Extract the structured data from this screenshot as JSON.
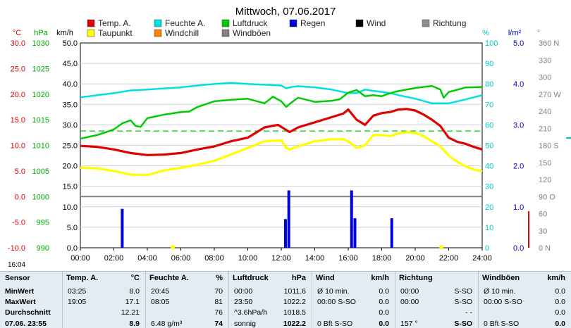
{
  "chart_data": {
    "type": "line",
    "title": "Mittwoch, 07.06.2017",
    "x_ticks": [
      "00:00",
      "02:00",
      "04:00",
      "06:00",
      "08:00",
      "10:00",
      "12:00",
      "14:00",
      "16:00",
      "18:00",
      "20:00",
      "22:00",
      "24:00"
    ],
    "axes": {
      "temp_c": {
        "unit": "°C",
        "range": [
          -10,
          30
        ],
        "ticks": [
          "30.0",
          "25.0",
          "20.0",
          "15.0",
          "10.0",
          "5.0",
          "0.0",
          "-5.0",
          "-10.0"
        ],
        "color": "#e00000"
      },
      "pressure_hpa": {
        "unit": "hPa",
        "range": [
          990,
          1030
        ],
        "ticks": [
          "1030",
          "1025",
          "1020",
          "1015",
          "1010",
          "1005",
          "1000",
          "995",
          "990"
        ],
        "color": "#00aa00"
      },
      "wind_kmh": {
        "unit": "km/h",
        "range": [
          0,
          50
        ],
        "ticks": [
          "50.0",
          "45.0",
          "40.0",
          "35.0",
          "30.0",
          "25.0",
          "20.0",
          "15.0",
          "10.0",
          "5.0",
          "0.0"
        ],
        "color": "#000000"
      },
      "humidity_pct": {
        "unit": "%",
        "range": [
          0,
          100
        ],
        "ticks": [
          "100",
          "90",
          "80",
          "70",
          "60",
          "50",
          "40",
          "30",
          "20",
          "10",
          "0"
        ],
        "color": "#00c8c8"
      },
      "rain_lm2": {
        "unit": "l/m²",
        "range": [
          0,
          5
        ],
        "ticks": [
          "5.0",
          "4.0",
          "3.0",
          "2.0",
          "1.0",
          "0.0"
        ],
        "color": "#0000cc"
      },
      "direction_deg": {
        "unit": "°",
        "ticks": [
          "360 N",
          "330",
          "300",
          "270 W",
          "240",
          "210",
          "180 S",
          "150",
          "120",
          "90 O",
          "60",
          "30",
          "0 N"
        ],
        "color": "#808080"
      }
    },
    "legend": [
      {
        "name": "Temp. A.",
        "color": "#e00000"
      },
      {
        "name": "Feuchte A.",
        "color": "#00e0e0"
      },
      {
        "name": "Luftdruck",
        "color": "#00cc00"
      },
      {
        "name": "Regen",
        "color": "#0000dd"
      },
      {
        "name": "Wind",
        "color": "#000000"
      },
      {
        "name": "Richtung",
        "color": "#8c8c8c"
      },
      {
        "name": "Taupunkt",
        "color": "#ffff00"
      },
      {
        "name": "Windchill",
        "color": "#ff8000"
      },
      {
        "name": "Windböen",
        "color": "#808080"
      }
    ],
    "series": [
      {
        "name": "Temp. A.",
        "axis": "temp_c",
        "color": "#e00000",
        "points": [
          [
            0,
            9.9
          ],
          [
            1,
            9.7
          ],
          [
            2,
            9.2
          ],
          [
            3,
            8.5
          ],
          [
            4,
            8.1
          ],
          [
            5,
            8.2
          ],
          [
            6,
            8.5
          ],
          [
            7,
            9.2
          ],
          [
            8,
            9.8
          ],
          [
            9,
            10.8
          ],
          [
            10,
            11.5
          ],
          [
            11,
            13.5
          ],
          [
            11.8,
            14.0
          ],
          [
            12.3,
            13.0
          ],
          [
            12.5,
            12.6
          ],
          [
            13,
            13.5
          ],
          [
            14,
            14.5
          ],
          [
            15,
            15.5
          ],
          [
            15.7,
            16.2
          ],
          [
            16,
            17.0
          ],
          [
            16.5,
            15.0
          ],
          [
            17,
            14.0
          ],
          [
            17.5,
            15.8
          ],
          [
            18,
            16.3
          ],
          [
            18.5,
            16.5
          ],
          [
            19,
            17.0
          ],
          [
            19.5,
            17.1
          ],
          [
            20,
            16.8
          ],
          [
            20.5,
            16.0
          ],
          [
            21,
            15.0
          ],
          [
            21.5,
            13.8
          ],
          [
            22,
            11.5
          ],
          [
            22.5,
            10.7
          ],
          [
            23,
            10.3
          ],
          [
            23.5,
            9.7
          ],
          [
            24,
            9.2
          ]
        ]
      },
      {
        "name": "Taupunkt",
        "axis": "temp_c",
        "color": "#ffff00",
        "points": [
          [
            0,
            5.6
          ],
          [
            1,
            5.5
          ],
          [
            2,
            5.0
          ],
          [
            3,
            4.3
          ],
          [
            4,
            4.2
          ],
          [
            5,
            5.1
          ],
          [
            6,
            5.6
          ],
          [
            7,
            6.2
          ],
          [
            8,
            7.0
          ],
          [
            9,
            8.2
          ],
          [
            10,
            9.5
          ],
          [
            11,
            10.8
          ],
          [
            12,
            11.0
          ],
          [
            12.3,
            9.5
          ],
          [
            12.5,
            9.2
          ],
          [
            13,
            9.8
          ],
          [
            14,
            10.8
          ],
          [
            15,
            11.2
          ],
          [
            15.7,
            11.2
          ],
          [
            16,
            10.8
          ],
          [
            16.5,
            9.5
          ],
          [
            17,
            10.0
          ],
          [
            17.5,
            12.0
          ],
          [
            18,
            12.0
          ],
          [
            18.5,
            11.8
          ],
          [
            19,
            12.3
          ],
          [
            19.5,
            12.6
          ],
          [
            20,
            12.4
          ],
          [
            20.5,
            11.8
          ],
          [
            21,
            10.8
          ],
          [
            21.5,
            9.8
          ],
          [
            22,
            8.0
          ],
          [
            22.5,
            6.8
          ],
          [
            23,
            5.9
          ],
          [
            23.5,
            5.3
          ],
          [
            24,
            4.9
          ]
        ]
      },
      {
        "name": "Feuchte A.",
        "axis": "humidity_pct",
        "color": "#00e0e0",
        "points": [
          [
            0,
            73.4
          ],
          [
            1,
            74.5
          ],
          [
            2,
            75.5
          ],
          [
            3,
            76.8
          ],
          [
            4,
            77.2
          ],
          [
            5,
            77.8
          ],
          [
            6,
            78.3
          ],
          [
            7,
            79.2
          ],
          [
            8,
            80.0
          ],
          [
            9,
            80.5
          ],
          [
            10,
            80.0
          ],
          [
            11,
            79.6
          ],
          [
            12,
            79.2
          ],
          [
            12.3,
            77.8
          ],
          [
            12.5,
            78.3
          ],
          [
            13,
            78.9
          ],
          [
            14,
            78.3
          ],
          [
            15,
            77.2
          ],
          [
            16,
            75.5
          ],
          [
            16.5,
            75.5
          ],
          [
            17,
            77.2
          ],
          [
            17.5,
            76.6
          ],
          [
            18,
            76.1
          ],
          [
            18.5,
            75.5
          ],
          [
            19,
            74.5
          ],
          [
            20,
            72.8
          ],
          [
            21,
            70.5
          ],
          [
            22,
            70.5
          ],
          [
            23,
            72.4
          ],
          [
            24,
            74.5
          ]
        ]
      },
      {
        "name": "Luftdruck",
        "axis": "pressure_hpa",
        "color": "#00cc00",
        "points": [
          [
            0,
            1011.3
          ],
          [
            1,
            1012.0
          ],
          [
            2,
            1013.1
          ],
          [
            2.5,
            1014.3
          ],
          [
            3,
            1014.9
          ],
          [
            3.3,
            1013.8
          ],
          [
            3.6,
            1013.6
          ],
          [
            4,
            1015.3
          ],
          [
            5,
            1016.0
          ],
          [
            6,
            1016.5
          ],
          [
            6.5,
            1016.6
          ],
          [
            7,
            1017.5
          ],
          [
            8,
            1018.6
          ],
          [
            9,
            1018.9
          ],
          [
            10,
            1019.1
          ],
          [
            11,
            1018.2
          ],
          [
            11.5,
            1019.5
          ],
          [
            12,
            1018.6
          ],
          [
            12.3,
            1017.5
          ],
          [
            12.5,
            1018.1
          ],
          [
            13,
            1019.3
          ],
          [
            14,
            1018.5
          ],
          [
            15,
            1018.7
          ],
          [
            15.5,
            1019.0
          ],
          [
            16,
            1020.3
          ],
          [
            16.5,
            1020.8
          ],
          [
            17,
            1019.6
          ],
          [
            17.5,
            1019.8
          ],
          [
            18,
            1019.6
          ],
          [
            18.5,
            1020.2
          ],
          [
            19,
            1020.6
          ],
          [
            20,
            1021.2
          ],
          [
            21,
            1021.6
          ],
          [
            21.5,
            1020.9
          ],
          [
            21.7,
            1019.3
          ],
          [
            22,
            1020.4
          ],
          [
            23,
            1021.3
          ],
          [
            24,
            1021.4
          ]
        ]
      }
    ],
    "rain_bars": [
      {
        "x": 2.5,
        "v": 0.95
      },
      {
        "x": 12.25,
        "v": 0.7
      },
      {
        "x": 12.45,
        "v": 1.4
      },
      {
        "x": 16.2,
        "v": 1.4
      },
      {
        "x": 16.4,
        "v": 0.72
      },
      {
        "x": 18.6,
        "v": 0.72
      }
    ],
    "reference_lines": [
      {
        "axis": "temp_c",
        "value": 12.8,
        "color": "#00cc00",
        "style": "dashed"
      },
      {
        "axis": "temp_c",
        "value": 0.0,
        "color": "#808080",
        "style": "solid"
      }
    ],
    "annotations": [
      "16:04"
    ]
  },
  "stats": {
    "row_labels": [
      "Sensor",
      "MinWert",
      "MaxWert",
      "Durchschnitt",
      "07.06. 23:55"
    ],
    "columns": [
      {
        "title": "Temp. A.",
        "unit": "°C",
        "rows": [
          [
            "03:25",
            "8.0"
          ],
          [
            "19:05",
            "17.1"
          ],
          [
            "",
            "12.21"
          ],
          [
            "",
            "8.9"
          ]
        ]
      },
      {
        "title": "Feuchte A.",
        "unit": "%",
        "rows": [
          [
            "20:45",
            "70"
          ],
          [
            "08:05",
            "81"
          ],
          [
            "",
            "76"
          ],
          [
            "6.48 g/m³",
            "74"
          ]
        ]
      },
      {
        "title": "Luftdruck",
        "unit": "hPa",
        "rows": [
          [
            "00:00",
            "1011.6"
          ],
          [
            "23:50",
            "1022.2"
          ],
          [
            "^3.6hPa/h",
            "1018.5"
          ],
          [
            "sonnig",
            "1022.2"
          ]
        ]
      },
      {
        "title": "Wind",
        "unit": "km/h",
        "rows": [
          [
            "Ø 10 min.",
            "0.0"
          ],
          [
            "00:00   S-SO",
            "0.0"
          ],
          [
            "",
            "0.0"
          ],
          [
            "0 Bft  S-SO",
            "0.0"
          ]
        ]
      },
      {
        "title": "Richtung",
        "unit": "",
        "rows": [
          [
            "00:00",
            "S-SO"
          ],
          [
            "00:00",
            "S-SO"
          ],
          [
            "",
            "- -"
          ],
          [
            "157 °",
            "S-SO"
          ]
        ]
      },
      {
        "title": "Windböen",
        "unit": "km/h",
        "rows": [
          [
            "Ø 10 min.",
            "0.0"
          ],
          [
            "00:00   S-SO",
            "0.0"
          ],
          [
            "",
            "0.0"
          ],
          [
            "0 Bft  S-SO",
            "0.0"
          ]
        ]
      }
    ]
  }
}
